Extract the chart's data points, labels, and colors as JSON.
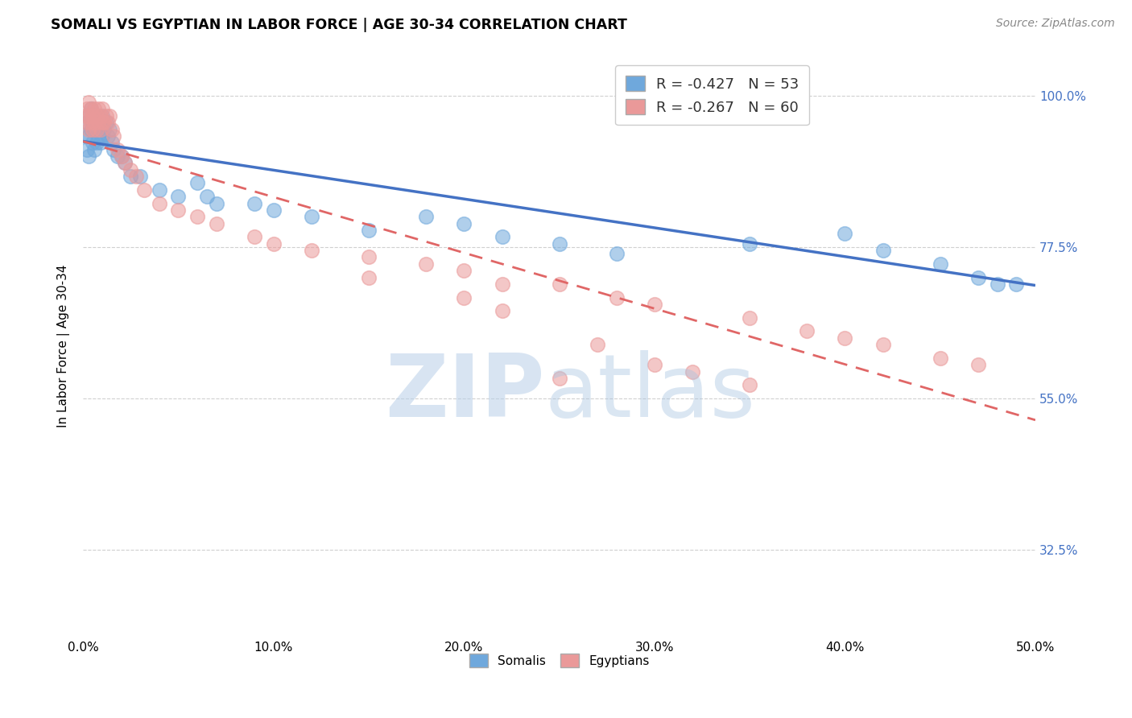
{
  "title": "SOMALI VS EGYPTIAN IN LABOR FORCE | AGE 30-34 CORRELATION CHART",
  "source": "Source: ZipAtlas.com",
  "ylabel": "In Labor Force | Age 30-34",
  "x_min": 0.0,
  "x_max": 0.5,
  "y_min": 0.195,
  "y_max": 1.06,
  "yticks": [
    0.325,
    0.55,
    0.775,
    1.0
  ],
  "ytick_labels": [
    "32.5%",
    "55.0%",
    "77.5%",
    "100.0%"
  ],
  "xticks": [
    0.0,
    0.1,
    0.2,
    0.3,
    0.4,
    0.5
  ],
  "xtick_labels": [
    "0.0%",
    "10.0%",
    "20.0%",
    "30.0%",
    "40.0%",
    "50.0%"
  ],
  "somali_R": -0.427,
  "somali_N": 53,
  "egyptian_R": -0.267,
  "egyptian_N": 60,
  "somali_color": "#6fa8dc",
  "egyptian_color": "#ea9999",
  "somali_line_color": "#4472c4",
  "egyptian_line_color": "#e06666",
  "somali_line_x0": 0.0,
  "somali_line_y0": 0.932,
  "somali_line_x1": 0.5,
  "somali_line_y1": 0.718,
  "egyptian_line_x0": 0.0,
  "egyptian_line_y0": 0.932,
  "egyptian_line_x1": 0.5,
  "egyptian_line_y1": 0.518,
  "somali_x": [
    0.001,
    0.002,
    0.002,
    0.003,
    0.003,
    0.003,
    0.004,
    0.004,
    0.005,
    0.005,
    0.006,
    0.006,
    0.006,
    0.007,
    0.007,
    0.008,
    0.008,
    0.009,
    0.009,
    0.01,
    0.01,
    0.011,
    0.012,
    0.013,
    0.014,
    0.015,
    0.016,
    0.018,
    0.02,
    0.022,
    0.025,
    0.03,
    0.04,
    0.05,
    0.06,
    0.065,
    0.07,
    0.09,
    0.1,
    0.12,
    0.15,
    0.18,
    0.2,
    0.22,
    0.25,
    0.28,
    0.35,
    0.4,
    0.42,
    0.45,
    0.47,
    0.48,
    0.49
  ],
  "somali_y": [
    0.94,
    0.96,
    0.92,
    0.97,
    0.94,
    0.91,
    0.98,
    0.95,
    0.96,
    0.93,
    0.97,
    0.95,
    0.92,
    0.96,
    0.93,
    0.97,
    0.94,
    0.96,
    0.93,
    0.97,
    0.94,
    0.95,
    0.96,
    0.94,
    0.95,
    0.93,
    0.92,
    0.91,
    0.91,
    0.9,
    0.88,
    0.88,
    0.86,
    0.85,
    0.87,
    0.85,
    0.84,
    0.84,
    0.83,
    0.82,
    0.8,
    0.82,
    0.81,
    0.79,
    0.78,
    0.765,
    0.78,
    0.795,
    0.77,
    0.75,
    0.73,
    0.72,
    0.72
  ],
  "egyptian_x": [
    0.001,
    0.002,
    0.002,
    0.003,
    0.003,
    0.003,
    0.004,
    0.004,
    0.005,
    0.005,
    0.006,
    0.006,
    0.007,
    0.007,
    0.008,
    0.008,
    0.009,
    0.009,
    0.01,
    0.01,
    0.011,
    0.012,
    0.013,
    0.014,
    0.015,
    0.016,
    0.018,
    0.02,
    0.022,
    0.025,
    0.028,
    0.032,
    0.04,
    0.05,
    0.06,
    0.07,
    0.09,
    0.1,
    0.12,
    0.15,
    0.18,
    0.2,
    0.22,
    0.25,
    0.28,
    0.3,
    0.35,
    0.38,
    0.4,
    0.42,
    0.45,
    0.47,
    0.25,
    0.15,
    0.2,
    0.22,
    0.27,
    0.3,
    0.32,
    0.35
  ],
  "egyptian_y": [
    0.97,
    0.98,
    0.96,
    0.99,
    0.97,
    0.95,
    0.98,
    0.96,
    0.97,
    0.95,
    0.98,
    0.96,
    0.97,
    0.95,
    0.98,
    0.96,
    0.97,
    0.95,
    0.98,
    0.96,
    0.96,
    0.97,
    0.96,
    0.97,
    0.95,
    0.94,
    0.92,
    0.91,
    0.9,
    0.89,
    0.88,
    0.86,
    0.84,
    0.83,
    0.82,
    0.81,
    0.79,
    0.78,
    0.77,
    0.76,
    0.75,
    0.74,
    0.72,
    0.72,
    0.7,
    0.69,
    0.67,
    0.65,
    0.64,
    0.63,
    0.61,
    0.6,
    0.58,
    0.73,
    0.7,
    0.68,
    0.63,
    0.6,
    0.59,
    0.57
  ]
}
